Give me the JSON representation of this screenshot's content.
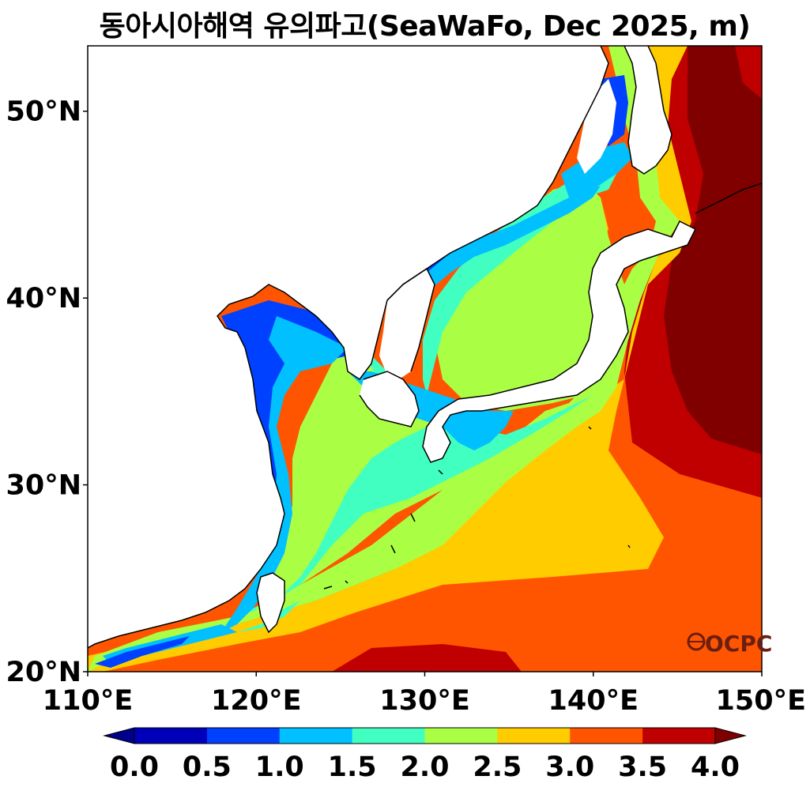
{
  "title": "동아시아해역 유의파고(SeaWaFo, Dec 2025, m)",
  "map": {
    "lon_range": [
      110,
      150
    ],
    "lat_range": [
      20,
      53.5
    ],
    "lon_ticks": [
      "110°E",
      "120°E",
      "130°E",
      "140°E",
      "150°E"
    ],
    "lat_ticks": [
      "20°N",
      "30°N",
      "40°N",
      "50°N"
    ],
    "lat_tick_values": [
      20,
      30,
      40,
      50
    ],
    "lon_tick_values": [
      110,
      120,
      130,
      140,
      150
    ]
  },
  "colorbar": {
    "labels": [
      "0.0",
      "0.5",
      "1.0",
      "1.5",
      "2.0",
      "2.5",
      "3.0",
      "3.5",
      "4.0"
    ],
    "levels": [
      0.0,
      0.5,
      1.0,
      1.5,
      2.0,
      2.5,
      3.0,
      3.5,
      4.0
    ],
    "colors": [
      "#0000b8",
      "#0040ff",
      "#00c0ff",
      "#40ffc0",
      "#aaff44",
      "#ffcc00",
      "#ff5500",
      "#c00000"
    ],
    "under_color": "#00008b",
    "over_color": "#800000"
  },
  "logo": {
    "text": "OCPC",
    "icon": "globe-icon"
  }
}
